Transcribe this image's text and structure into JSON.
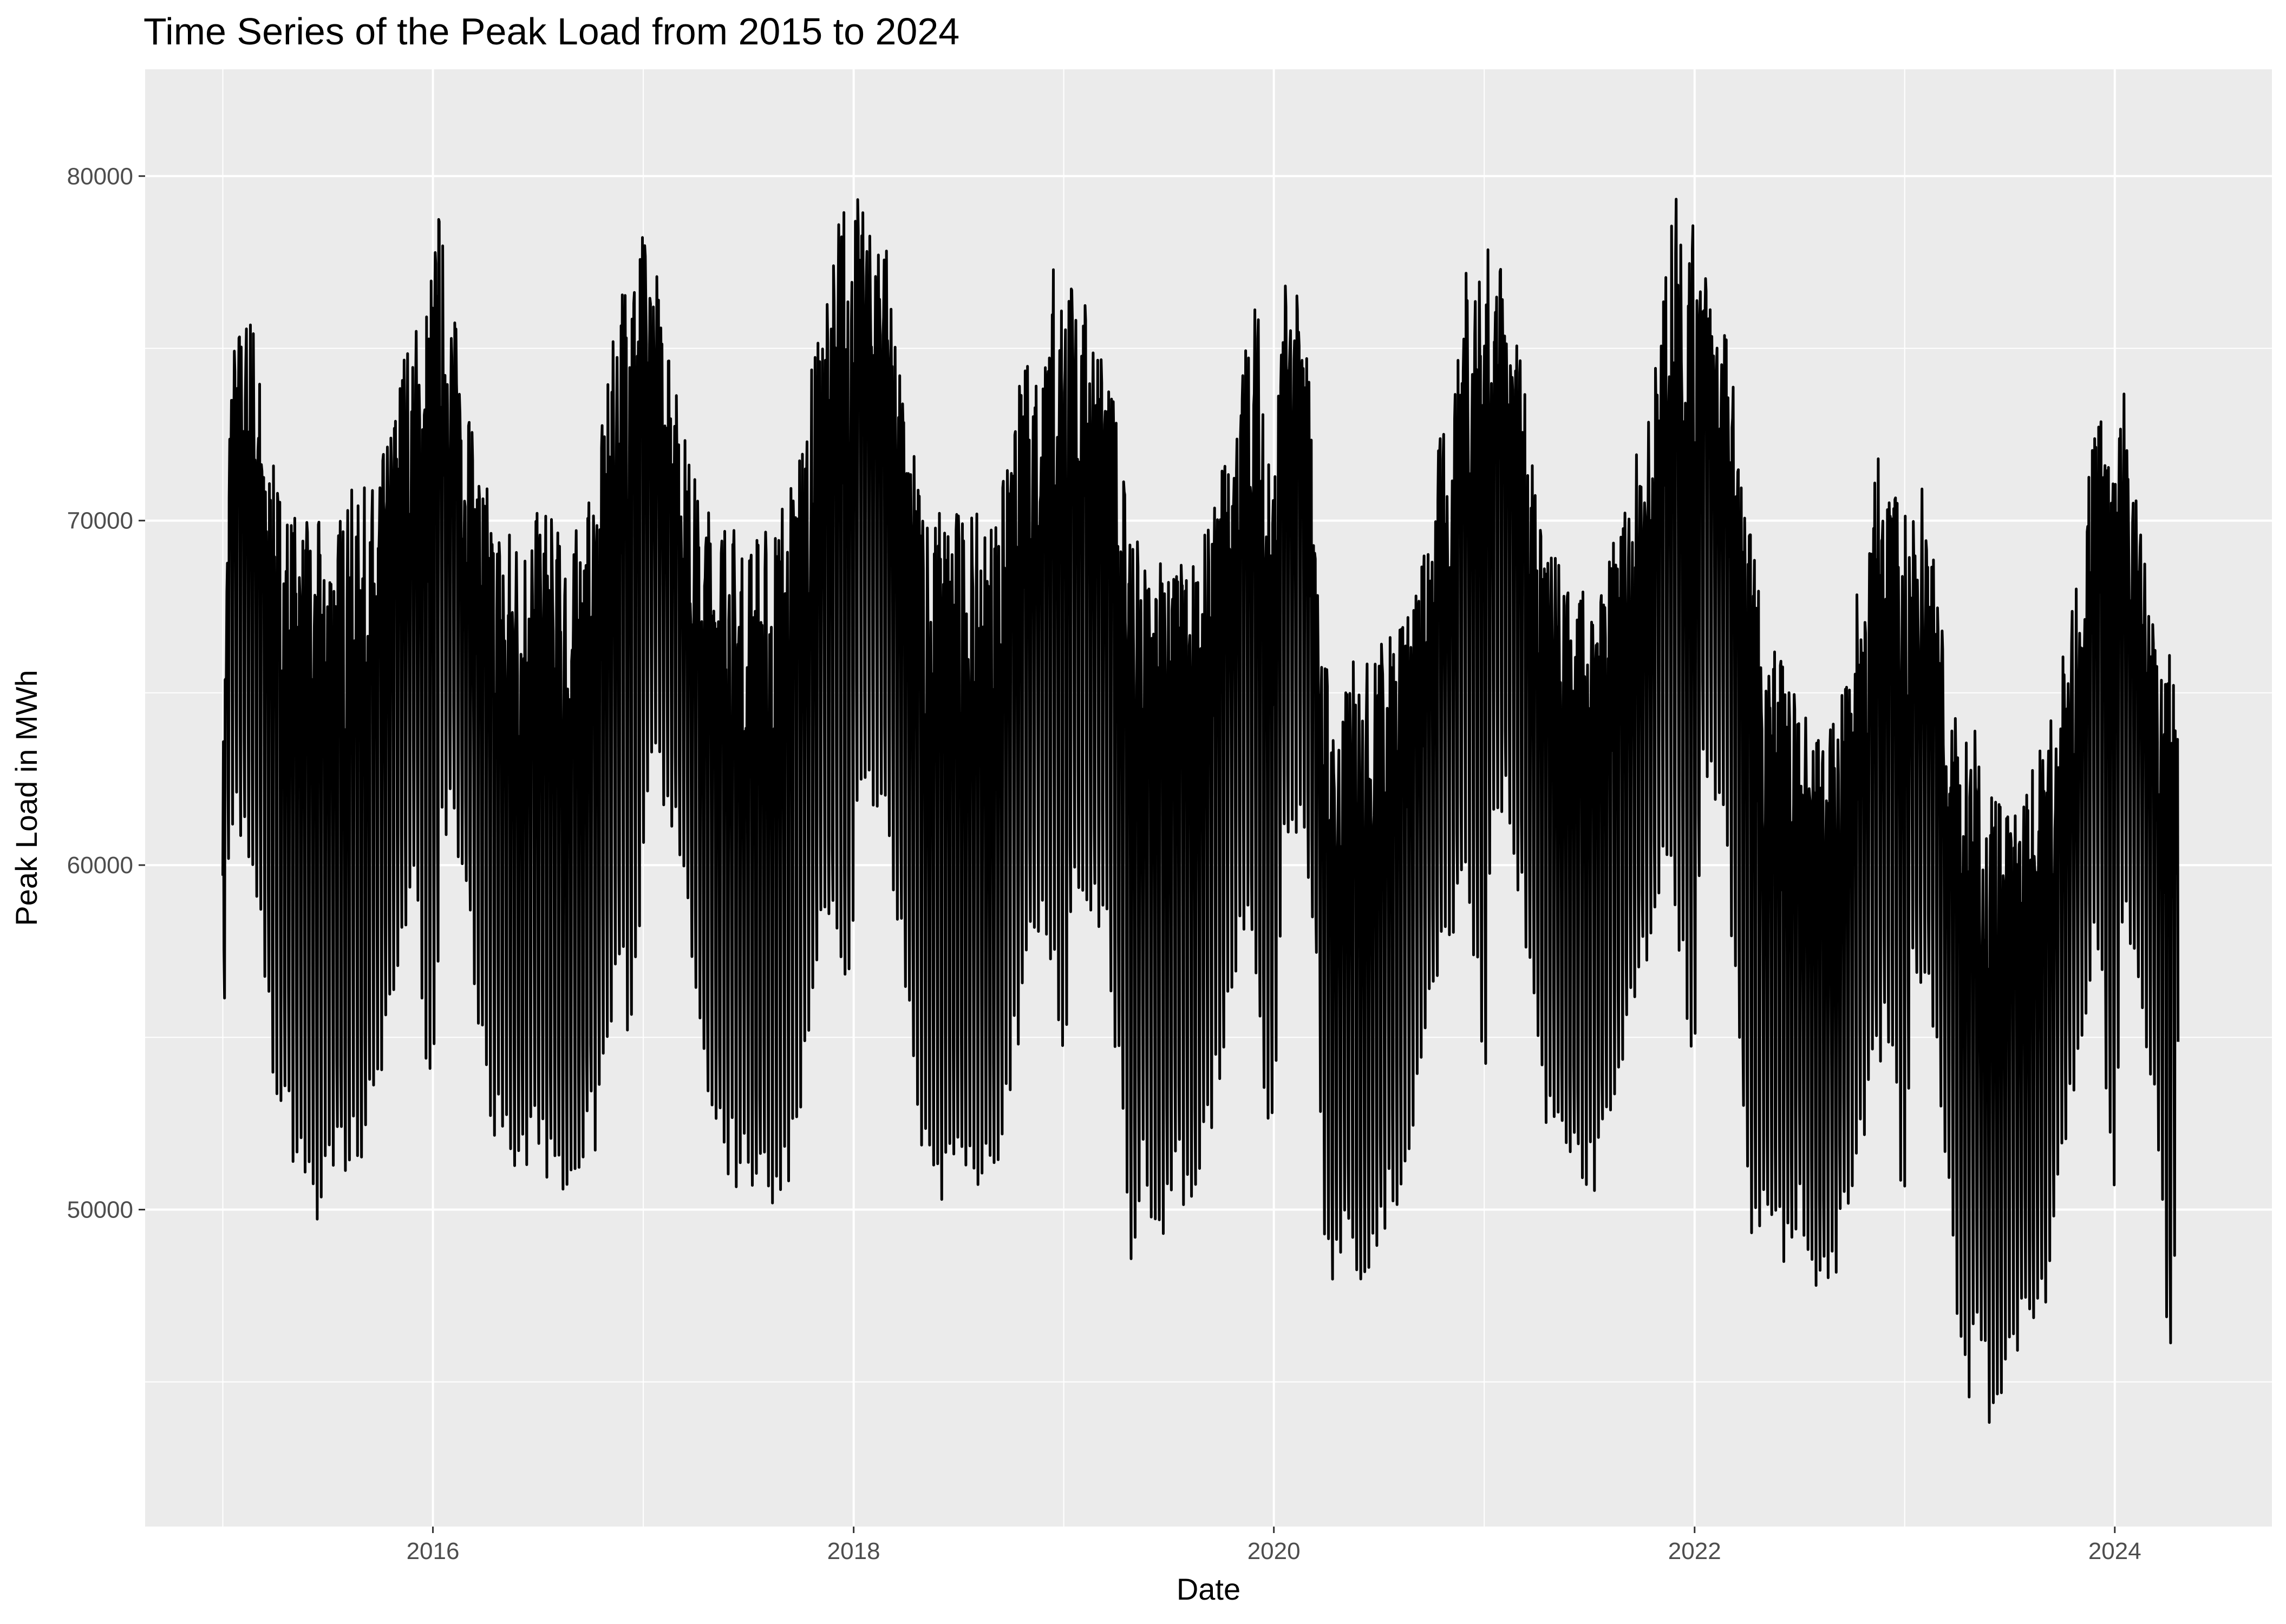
{
  "chart_data": {
    "type": "line",
    "title": "Time Series of the Peak Load from 2015 to 2024",
    "xlabel": "Date",
    "ylabel": "Peak Load in MWh",
    "x_range": [
      "2014-08-19",
      "2024-09-30"
    ],
    "ylim": [
      40800,
      83100
    ],
    "x_ticks": [
      {
        "label": "2016",
        "date": "2016-01-01"
      },
      {
        "label": "2018",
        "date": "2018-01-01"
      },
      {
        "label": "2020",
        "date": "2020-01-01"
      },
      {
        "label": "2022",
        "date": "2022-01-01"
      },
      {
        "label": "2024",
        "date": "2024-01-01"
      }
    ],
    "y_ticks": [
      50000,
      60000,
      70000,
      80000
    ],
    "grid": true,
    "legend": "none",
    "colors": {
      "panel": "#ebebeb",
      "grid": "#ffffff",
      "line": "#000000",
      "tick_text": "#4d4d4d"
    },
    "series": [
      {
        "frequency": "daily",
        "start": "2015-01-01",
        "end": "2024-04-20",
        "upper_envelope": [
          [
            "2015-01-01",
            63000
          ],
          [
            "2015-01-15",
            75000
          ],
          [
            "2015-02-01",
            76000
          ],
          [
            "2015-02-15",
            76500
          ],
          [
            "2015-03-01",
            75500
          ],
          [
            "2015-03-20",
            72000
          ],
          [
            "2015-04-15",
            71000
          ],
          [
            "2015-05-15",
            70000
          ],
          [
            "2015-06-15",
            70000
          ],
          [
            "2015-07-15",
            70000
          ],
          [
            "2015-08-15",
            71000
          ],
          [
            "2015-09-15",
            71000
          ],
          [
            "2015-10-15",
            72500
          ],
          [
            "2015-11-15",
            75500
          ],
          [
            "2015-12-15",
            76000
          ],
          [
            "2016-01-10",
            79300
          ],
          [
            "2016-02-01",
            76500
          ],
          [
            "2016-02-20",
            75000
          ],
          [
            "2016-03-20",
            72000
          ],
          [
            "2016-04-15",
            70500
          ],
          [
            "2016-05-15",
            70000
          ],
          [
            "2016-06-15",
            70000
          ],
          [
            "2016-07-15",
            70500
          ],
          [
            "2016-08-15",
            69500
          ],
          [
            "2016-09-15",
            70000
          ],
          [
            "2016-10-15",
            72000
          ],
          [
            "2016-11-15",
            76000
          ],
          [
            "2016-12-10",
            79200
          ],
          [
            "2017-01-10",
            78000
          ],
          [
            "2017-02-01",
            77000
          ],
          [
            "2017-02-20",
            75000
          ],
          [
            "2017-03-20",
            72000
          ],
          [
            "2017-04-15",
            70500
          ],
          [
            "2017-05-15",
            70500
          ],
          [
            "2017-06-15",
            70000
          ],
          [
            "2017-07-15",
            70000
          ],
          [
            "2017-08-15",
            70000
          ],
          [
            "2017-09-15",
            71500
          ],
          [
            "2017-10-15",
            74000
          ],
          [
            "2017-11-15",
            77000
          ],
          [
            "2017-12-10",
            79500
          ],
          [
            "2018-01-10",
            79500
          ],
          [
            "2018-02-05",
            78000
          ],
          [
            "2018-02-20",
            80000
          ],
          [
            "2018-03-15",
            75000
          ],
          [
            "2018-04-15",
            72000
          ],
          [
            "2018-05-15",
            70500
          ],
          [
            "2018-06-15",
            70500
          ],
          [
            "2018-07-15",
            70500
          ],
          [
            "2018-08-15",
            70000
          ],
          [
            "2018-09-15",
            71000
          ],
          [
            "2018-10-15",
            74000
          ],
          [
            "2018-11-15",
            75500
          ],
          [
            "2018-12-10",
            78000
          ],
          [
            "2019-01-15",
            77000
          ],
          [
            "2019-02-10",
            76500
          ],
          [
            "2019-03-01",
            76000
          ],
          [
            "2019-03-20",
            74000
          ],
          [
            "2019-04-15",
            72500
          ],
          [
            "2019-05-15",
            69000
          ],
          [
            "2019-06-15",
            69500
          ],
          [
            "2019-07-15",
            69000
          ],
          [
            "2019-08-15",
            69000
          ],
          [
            "2019-09-15",
            70000
          ],
          [
            "2019-10-15",
            73000
          ],
          [
            "2019-11-15",
            75500
          ],
          [
            "2019-12-01",
            76800
          ],
          [
            "2020-01-01",
            72000
          ],
          [
            "2020-01-20",
            77000
          ],
          [
            "2020-02-15",
            76500
          ],
          [
            "2020-03-01",
            75000
          ],
          [
            "2020-03-15",
            69000
          ],
          [
            "2020-04-15",
            64000
          ],
          [
            "2020-05-15",
            66000
          ],
          [
            "2020-06-15",
            66000
          ],
          [
            "2020-07-15",
            67000
          ],
          [
            "2020-08-15",
            68000
          ],
          [
            "2020-09-15",
            69000
          ],
          [
            "2020-10-15",
            72500
          ],
          [
            "2020-11-15",
            74500
          ],
          [
            "2020-12-01",
            78400
          ],
          [
            "2021-01-15",
            78000
          ],
          [
            "2021-02-10",
            77000
          ],
          [
            "2021-03-01",
            76000
          ],
          [
            "2021-03-20",
            72000
          ],
          [
            "2021-04-15",
            70000
          ],
          [
            "2021-05-15",
            68500
          ],
          [
            "2021-06-15",
            68000
          ],
          [
            "2021-07-15",
            68000
          ],
          [
            "2021-08-15",
            69500
          ],
          [
            "2021-09-15",
            71500
          ],
          [
            "2021-10-15",
            73500
          ],
          [
            "2021-11-15",
            77500
          ],
          [
            "2021-12-05",
            81100
          ],
          [
            "2021-12-20",
            78500
          ],
          [
            "2022-01-15",
            78700
          ],
          [
            "2022-02-10",
            76000
          ],
          [
            "2022-03-01",
            75500
          ],
          [
            "2022-03-20",
            72000
          ],
          [
            "2022-04-15",
            69000
          ],
          [
            "2022-05-15",
            66500
          ],
          [
            "2022-06-15",
            66000
          ],
          [
            "2022-07-15",
            64500
          ],
          [
            "2022-08-15",
            63500
          ],
          [
            "2022-09-15",
            65000
          ],
          [
            "2022-10-15",
            68500
          ],
          [
            "2022-11-15",
            72000
          ],
          [
            "2022-12-15",
            71000
          ],
          [
            "2023-01-15",
            70000
          ],
          [
            "2023-02-01",
            71500
          ],
          [
            "2023-03-01",
            68000
          ],
          [
            "2023-04-01",
            64500
          ],
          [
            "2023-05-01",
            64000
          ],
          [
            "2023-06-01",
            63000
          ],
          [
            "2023-07-01",
            61500
          ],
          [
            "2023-08-01",
            62500
          ],
          [
            "2023-09-01",
            64000
          ],
          [
            "2023-10-01",
            66000
          ],
          [
            "2023-11-01",
            69000
          ],
          [
            "2023-12-01",
            73600
          ],
          [
            "2024-01-01",
            71000
          ],
          [
            "2024-01-20",
            74300
          ],
          [
            "2024-02-10",
            71000
          ],
          [
            "2024-03-01",
            68000
          ],
          [
            "2024-03-20",
            66000
          ],
          [
            "2024-04-20",
            66500
          ]
        ],
        "lower_envelope": [
          [
            "2015-01-01",
            54300
          ],
          [
            "2015-01-15",
            61000
          ],
          [
            "2015-02-01",
            60000
          ],
          [
            "2015-03-01",
            58000
          ],
          [
            "2015-04-01",
            53000
          ],
          [
            "2015-05-01",
            51000
          ],
          [
            "2015-06-01",
            50500
          ],
          [
            "2015-06-10",
            48500
          ],
          [
            "2015-07-01",
            50500
          ],
          [
            "2015-08-01",
            50500
          ],
          [
            "2015-09-01",
            51000
          ],
          [
            "2015-10-01",
            52500
          ],
          [
            "2015-11-01",
            56000
          ],
          [
            "2015-12-01",
            58500
          ],
          [
            "2015-12-31",
            50400
          ],
          [
            "2016-01-15",
            59500
          ],
          [
            "2016-02-01",
            61000
          ],
          [
            "2016-03-01",
            58000
          ],
          [
            "2016-04-01",
            52500
          ],
          [
            "2016-05-01",
            51000
          ],
          [
            "2016-06-01",
            50500
          ],
          [
            "2016-07-01",
            51000
          ],
          [
            "2016-08-01",
            50000
          ],
          [
            "2016-08-20",
            49000
          ],
          [
            "2016-09-15",
            50500
          ],
          [
            "2016-10-15",
            51500
          ],
          [
            "2016-11-15",
            56000
          ],
          [
            "2016-12-15",
            54000
          ],
          [
            "2017-01-15",
            62000
          ],
          [
            "2017-02-15",
            61000
          ],
          [
            "2017-03-15",
            58500
          ],
          [
            "2017-04-15",
            53000
          ],
          [
            "2017-05-15",
            51000
          ],
          [
            "2017-06-15",
            50000
          ],
          [
            "2017-07-15",
            49500
          ],
          [
            "2017-08-15",
            49000
          ],
          [
            "2017-09-15",
            50000
          ],
          [
            "2017-10-15",
            54000
          ],
          [
            "2017-11-15",
            57500
          ],
          [
            "2017-12-20",
            54200
          ],
          [
            "2018-01-15",
            62000
          ],
          [
            "2018-02-15",
            61000
          ],
          [
            "2018-03-15",
            58500
          ],
          [
            "2018-04-15",
            52500
          ],
          [
            "2018-05-15",
            50000
          ],
          [
            "2018-06-01",
            49400
          ],
          [
            "2018-07-01",
            50000
          ],
          [
            "2018-08-01",
            50000
          ],
          [
            "2018-09-01",
            49500
          ],
          [
            "2018-10-01",
            53000
          ],
          [
            "2018-11-01",
            56000
          ],
          [
            "2018-12-01",
            57500
          ],
          [
            "2018-12-31",
            53500
          ],
          [
            "2019-01-20",
            58000
          ],
          [
            "2019-02-15",
            58000
          ],
          [
            "2019-03-15",
            57000
          ],
          [
            "2019-04-15",
            51500
          ],
          [
            "2019-05-01",
            45500
          ],
          [
            "2019-05-20",
            50000
          ],
          [
            "2019-06-15",
            47300
          ],
          [
            "2019-07-15",
            50000
          ],
          [
            "2019-08-15",
            48800
          ],
          [
            "2019-09-15",
            52000
          ],
          [
            "2019-10-15",
            55000
          ],
          [
            "2019-11-15",
            57500
          ],
          [
            "2019-12-31",
            50200
          ],
          [
            "2020-01-15",
            59000
          ],
          [
            "2020-02-15",
            60500
          ],
          [
            "2020-03-15",
            56000
          ],
          [
            "2020-04-01",
            47100
          ],
          [
            "2020-05-01",
            48000
          ],
          [
            "2020-06-01",
            47300
          ],
          [
            "2020-07-01",
            48500
          ],
          [
            "2020-08-01",
            49500
          ],
          [
            "2020-09-01",
            52000
          ],
          [
            "2020-10-01",
            55000
          ],
          [
            "2020-11-01",
            57000
          ],
          [
            "2020-12-01",
            59000
          ],
          [
            "2021-01-01",
            52000
          ],
          [
            "2021-01-15",
            61000
          ],
          [
            "2021-02-15",
            60500
          ],
          [
            "2021-03-15",
            57000
          ],
          [
            "2021-04-15",
            52000
          ],
          [
            "2021-05-15",
            50500
          ],
          [
            "2021-06-15",
            50000
          ],
          [
            "2021-07-15",
            50000
          ],
          [
            "2021-08-15",
            52000
          ],
          [
            "2021-09-15",
            55500
          ],
          [
            "2021-10-15",
            56500
          ],
          [
            "2021-11-15",
            60000
          ],
          [
            "2021-12-31",
            52300
          ],
          [
            "2022-01-15",
            62000
          ],
          [
            "2022-02-15",
            61000
          ],
          [
            "2022-03-15",
            56000
          ],
          [
            "2022-04-01",
            48800
          ],
          [
            "2022-05-01",
            49000
          ],
          [
            "2022-06-01",
            47800
          ],
          [
            "2022-07-01",
            49000
          ],
          [
            "2022-08-01",
            46900
          ],
          [
            "2022-09-01",
            47500
          ],
          [
            "2022-10-01",
            50000
          ],
          [
            "2022-11-01",
            52000
          ],
          [
            "2022-12-01",
            55000
          ],
          [
            "2022-12-31",
            48700
          ],
          [
            "2023-01-15",
            56000
          ],
          [
            "2023-02-15",
            55500
          ],
          [
            "2023-03-15",
            50000
          ],
          [
            "2023-04-20",
            42500
          ],
          [
            "2023-05-01",
            46500
          ],
          [
            "2023-06-01",
            42800
          ],
          [
            "2023-07-01",
            45300
          ],
          [
            "2023-08-01",
            45800
          ],
          [
            "2023-09-01",
            46300
          ],
          [
            "2023-10-01",
            50500
          ],
          [
            "2023-11-01",
            54000
          ],
          [
            "2023-12-01",
            57500
          ],
          [
            "2023-12-31",
            49100
          ],
          [
            "2024-01-15",
            58000
          ],
          [
            "2024-02-15",
            55500
          ],
          [
            "2024-03-15",
            51500
          ],
          [
            "2024-04-05",
            43900
          ],
          [
            "2024-04-20",
            48600
          ]
        ]
      }
    ]
  }
}
